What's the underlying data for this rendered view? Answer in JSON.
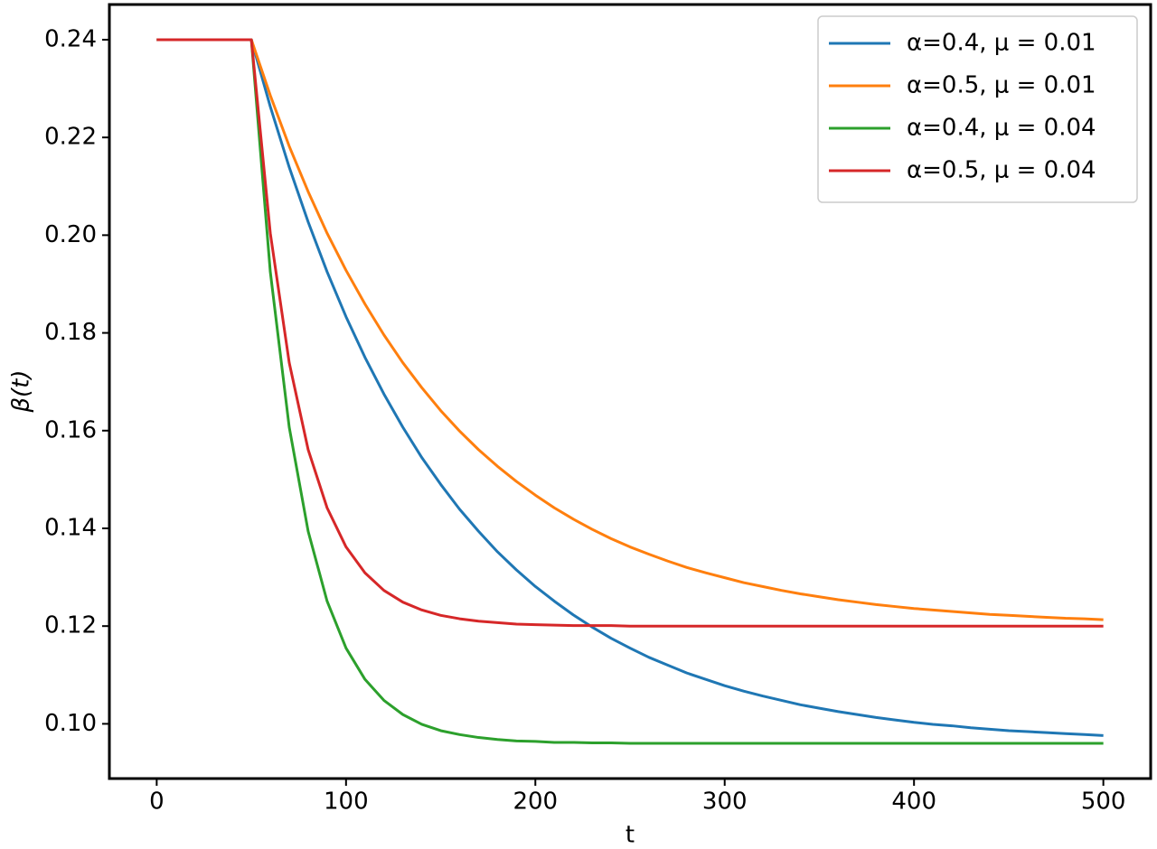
{
  "chart_data": {
    "type": "line",
    "xlabel": "t",
    "ylabel": "β(t)",
    "x": [
      0,
      50,
      60,
      70,
      80,
      90,
      100,
      110,
      120,
      130,
      140,
      150,
      160,
      170,
      180,
      190,
      200,
      210,
      220,
      230,
      240,
      250,
      260,
      270,
      280,
      290,
      300,
      310,
      320,
      330,
      340,
      350,
      360,
      370,
      380,
      390,
      400,
      410,
      420,
      430,
      440,
      450,
      460,
      470,
      480,
      490,
      500
    ],
    "series": [
      {
        "name": "α=0.4, μ = 0.01",
        "color": "#1f77b4",
        "values": [
          0.24,
          0.24,
          0.2263,
          0.2139,
          0.2027,
          0.1925,
          0.1833,
          0.175,
          0.1675,
          0.1607,
          0.1545,
          0.149,
          0.1439,
          0.1394,
          0.1352,
          0.1315,
          0.1281,
          0.1251,
          0.1223,
          0.1198,
          0.1175,
          0.1155,
          0.1136,
          0.112,
          0.1104,
          0.1091,
          0.1078,
          0.1067,
          0.1057,
          0.1048,
          0.1039,
          0.1032,
          0.1025,
          0.1019,
          0.1013,
          0.1008,
          0.1003,
          0.0999,
          0.0996,
          0.0992,
          0.0989,
          0.0986,
          0.0984,
          0.0982,
          0.098,
          0.0978,
          0.0976
        ]
      },
      {
        "name": "α=0.5, μ = 0.01",
        "color": "#ff7f0e",
        "values": [
          0.24,
          0.24,
          0.2286,
          0.2182,
          0.2089,
          0.2004,
          0.1928,
          0.1859,
          0.1796,
          0.1739,
          0.1688,
          0.1641,
          0.1599,
          0.1561,
          0.1527,
          0.1496,
          0.1468,
          0.1442,
          0.1419,
          0.1398,
          0.1379,
          0.1362,
          0.1347,
          0.1333,
          0.132,
          0.1309,
          0.1299,
          0.1289,
          0.1281,
          0.1273,
          0.1266,
          0.126,
          0.1254,
          0.1249,
          0.1244,
          0.124,
          0.1236,
          0.1233,
          0.123,
          0.1227,
          0.1224,
          0.1222,
          0.122,
          0.1218,
          0.1216,
          0.1215,
          0.1213
        ]
      },
      {
        "name": "α=0.4, μ = 0.04",
        "color": "#2ca02c",
        "values": [
          0.24,
          0.24,
          0.1925,
          0.1607,
          0.1394,
          0.1251,
          0.1155,
          0.1091,
          0.1048,
          0.1019,
          0.0999,
          0.0986,
          0.0978,
          0.0972,
          0.0968,
          0.0965,
          0.0964,
          0.0962,
          0.0962,
          0.0961,
          0.0961,
          0.096,
          0.096,
          0.096,
          0.096,
          0.096,
          0.096,
          0.096,
          0.096,
          0.096,
          0.096,
          0.096,
          0.096,
          0.096,
          0.096,
          0.096,
          0.096,
          0.096,
          0.096,
          0.096,
          0.096,
          0.096,
          0.096,
          0.096,
          0.096,
          0.096,
          0.096
        ]
      },
      {
        "name": "α=0.5, μ = 0.04",
        "color": "#d62728",
        "values": [
          0.24,
          0.24,
          0.2004,
          0.1739,
          0.1561,
          0.1442,
          0.1362,
          0.1309,
          0.1273,
          0.1249,
          0.1233,
          0.1222,
          0.1215,
          0.121,
          0.1207,
          0.1204,
          0.1203,
          0.1202,
          0.1201,
          0.1201,
          0.1201,
          0.12,
          0.12,
          0.12,
          0.12,
          0.12,
          0.12,
          0.12,
          0.12,
          0.12,
          0.12,
          0.12,
          0.12,
          0.12,
          0.12,
          0.12,
          0.12,
          0.12,
          0.12,
          0.12,
          0.12,
          0.12,
          0.12,
          0.12,
          0.12,
          0.12,
          0.12
        ]
      }
    ],
    "xlim": [
      -25,
      525
    ],
    "xticks": [
      0,
      100,
      200,
      300,
      400,
      500
    ],
    "ylim": [
      0.0888,
      0.2472
    ],
    "yticks": [
      {
        "value": 0.1,
        "label": "0.10"
      },
      0.12,
      0.14,
      0.16,
      0.18,
      {
        "value": 0.2,
        "label": "0.20"
      },
      0.22,
      0.24
    ],
    "grid": false,
    "legend": "upper right"
  }
}
